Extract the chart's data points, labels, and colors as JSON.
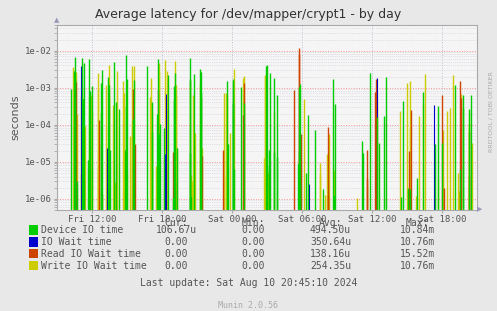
{
  "title": "Average latency for /dev/mapper/crypt1 - by day",
  "ylabel": "seconds",
  "xtick_labels": [
    "Fri 12:00",
    "Fri 18:00",
    "Sat 00:00",
    "Sat 06:00",
    "Sat 12:00",
    "Sat 18:00"
  ],
  "xtick_positions": [
    0.083,
    0.25,
    0.417,
    0.583,
    0.75,
    0.917
  ],
  "bg_color": "#e8e8e8",
  "plot_bg_color": "#f5f5f5",
  "legend_labels": [
    "Device IO time",
    "IO Wait time",
    "Read IO Wait time",
    "Write IO Wait time"
  ],
  "legend_colors": [
    "#00cc00",
    "#0000cc",
    "#cc4400",
    "#cccc00"
  ],
  "stats_header": [
    "Cur:",
    "Min:",
    "Avg:",
    "Max:"
  ],
  "stats": [
    [
      "106.67u",
      "0.00",
      "494.50u",
      "10.84m"
    ],
    [
      "0.00",
      "0.00",
      "350.64u",
      "10.76m"
    ],
    [
      "0.00",
      "0.00",
      "138.16u",
      "15.52m"
    ],
    [
      "0.00",
      "0.00",
      "254.35u",
      "10.76m"
    ]
  ],
  "last_update": "Last update: Sat Aug 10 20:45:10 2024",
  "munin_version": "Munin 2.0.56",
  "rrdtool_label": "RRDTOOL / TOBI OETIKER"
}
